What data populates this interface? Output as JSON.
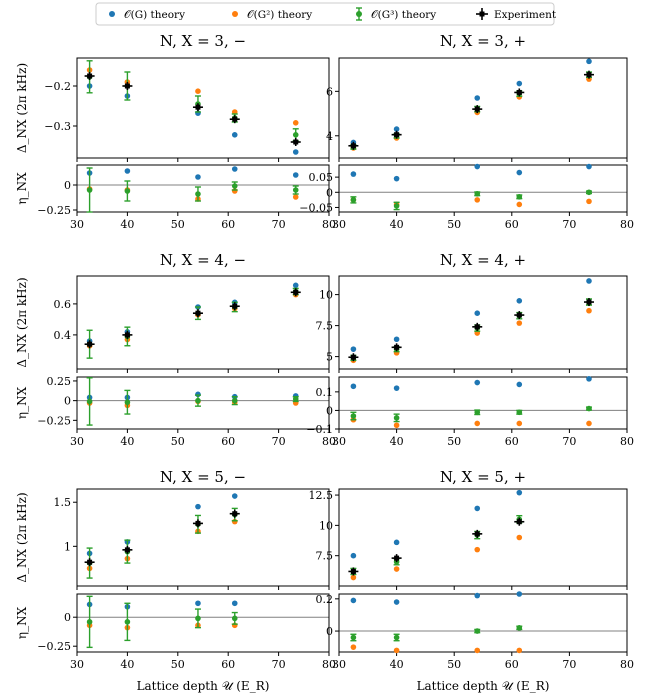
{
  "legend": {
    "items": [
      {
        "label": "𝒪(G) theory",
        "color": "#1f77b4",
        "marker": "dot"
      },
      {
        "label": "𝒪(G²) theory",
        "color": "#ff7f0e",
        "marker": "dot"
      },
      {
        "label": "𝒪(G³) theory",
        "color": "#2ca02c",
        "marker": "errorbar"
      },
      {
        "label": "Experiment",
        "color": "#000000",
        "marker": "cross-errorbar"
      }
    ]
  },
  "colors": {
    "og1": "#1f77b4",
    "og2": "#ff7f0e",
    "og3": "#2ca02c",
    "exp": "#000000",
    "zero_line": "#808080"
  },
  "xlabel": "Lattice depth 𝒰 (E_R)",
  "ylabel_top": "Δ_NX (2π kHz)",
  "ylabel_bottom": "η_NX",
  "chart_data": [
    {
      "type": "scatter",
      "title": "N, X = 3, −",
      "xlim": [
        30,
        80
      ],
      "xticks": [
        30,
        40,
        50,
        60,
        70,
        80
      ],
      "top": {
        "ylim": [
          -0.38,
          -0.13
        ],
        "yticks": [
          -0.2,
          -0.3
        ],
        "series": [
          {
            "name": "𝒪(G) theory",
            "x": [
              32.5,
              40,
              54,
              61.3,
              73.4
            ],
            "y": [
              -0.2,
              -0.225,
              -0.268,
              -0.322,
              -0.365
            ]
          },
          {
            "name": "𝒪(G²) theory",
            "x": [
              32.5,
              40,
              54,
              61.3,
              73.4
            ],
            "y": [
              -0.16,
              -0.19,
              -0.213,
              -0.265,
              -0.292
            ]
          },
          {
            "name": "𝒪(G³) theory",
            "x": [
              32.5,
              40,
              54,
              61.3,
              73.4
            ],
            "y": [
              -0.177,
              -0.2,
              -0.245,
              -0.28,
              -0.322
            ],
            "err": [
              0.04,
              0.035,
              0.02,
              0.01,
              0.015
            ]
          },
          {
            "name": "Experiment",
            "x": [
              32.5,
              40,
              54,
              61.3,
              73.4
            ],
            "y": [
              -0.175,
              -0.2,
              -0.253,
              -0.283,
              -0.34
            ],
            "err": [
              0.006,
              0.006,
              0.006,
              0.006,
              0.006
            ]
          }
        ]
      },
      "bottom": {
        "ylim": [
          -0.27,
          0.2
        ],
        "yticks": [
          0.0,
          -0.25
        ],
        "series": [
          {
            "name": "𝒪(G) theory",
            "x": [
              32.5,
              40,
              54,
              61.3,
              73.4
            ],
            "y": [
              0.12,
              0.14,
              0.08,
              0.16,
              0.1
            ]
          },
          {
            "name": "𝒪(G²) theory",
            "x": [
              32.5,
              40,
              54,
              61.3,
              73.4
            ],
            "y": [
              -0.04,
              -0.05,
              -0.14,
              -0.06,
              -0.12
            ]
          },
          {
            "name": "𝒪(G³) theory",
            "x": [
              32.5,
              40,
              54,
              61.3,
              73.4
            ],
            "y": [
              -0.05,
              -0.06,
              -0.09,
              -0.01,
              -0.05
            ],
            "err": [
              0.22,
              0.1,
              0.07,
              0.04,
              0.04
            ]
          }
        ]
      }
    },
    {
      "type": "scatter",
      "title": "N, X = 3, +",
      "xlim": [
        30,
        80
      ],
      "xticks": [
        30,
        40,
        50,
        60,
        70,
        80
      ],
      "top": {
        "ylim": [
          3.0,
          7.5
        ],
        "yticks": [
          4,
          6
        ],
        "series": [
          {
            "name": "𝒪(G) theory",
            "x": [
              32.5,
              40,
              54,
              61.3,
              73.4
            ],
            "y": [
              3.7,
              4.3,
              5.7,
              6.35,
              7.35
            ]
          },
          {
            "name": "𝒪(G²) theory",
            "x": [
              32.5,
              40,
              54,
              61.3,
              73.4
            ],
            "y": [
              3.45,
              3.9,
              5.05,
              5.75,
              6.55
            ]
          },
          {
            "name": "𝒪(G³) theory",
            "x": [
              32.5,
              40,
              54,
              61.3,
              73.4
            ],
            "y": [
              3.5,
              4.0,
              5.2,
              5.9,
              6.75
            ],
            "err": [
              0.1,
              0.1,
              0.12,
              0.12,
              0.12
            ]
          },
          {
            "name": "Experiment",
            "x": [
              32.5,
              40,
              54,
              61.3,
              73.4
            ],
            "y": [
              3.55,
              4.05,
              5.2,
              5.95,
              6.75
            ],
            "err": [
              0.05,
              0.05,
              0.05,
              0.05,
              0.05
            ]
          }
        ]
      },
      "bottom": {
        "ylim": [
          -0.065,
          0.09
        ],
        "yticks": [
          0.05,
          0.0,
          -0.05
        ],
        "series": [
          {
            "name": "𝒪(G) theory",
            "x": [
              32.5,
              40,
              54,
              61.3,
              73.4
            ],
            "y": [
              0.06,
              0.045,
              0.085,
              0.065,
              0.085
            ]
          },
          {
            "name": "𝒪(G²) theory",
            "x": [
              32.5,
              40,
              54,
              61.3,
              73.4
            ],
            "y": [
              -0.025,
              -0.04,
              -0.025,
              -0.04,
              -0.03
            ]
          },
          {
            "name": "𝒪(G³) theory",
            "x": [
              32.5,
              40,
              54,
              61.3,
              73.4
            ],
            "y": [
              -0.025,
              -0.045,
              -0.005,
              -0.015,
              0.0
            ],
            "err": [
              0.01,
              0.012,
              0.006,
              0.006,
              0.004
            ]
          }
        ]
      }
    },
    {
      "type": "scatter",
      "title": "N, X = 4, −",
      "xlim": [
        30,
        80
      ],
      "xticks": [
        30,
        40,
        50,
        60,
        70,
        80
      ],
      "top": {
        "ylim": [
          0.18,
          0.78
        ],
        "yticks": [
          0.4,
          0.6
        ],
        "series": [
          {
            "name": "𝒪(G) theory",
            "x": [
              32.5,
              40,
              54,
              61.3,
              73.4
            ],
            "y": [
              0.36,
              0.42,
              0.58,
              0.61,
              0.72
            ]
          },
          {
            "name": "𝒪(G²) theory",
            "x": [
              32.5,
              40,
              54,
              61.3,
              73.4
            ],
            "y": [
              0.33,
              0.37,
              0.53,
              0.57,
              0.66
            ]
          },
          {
            "name": "𝒪(G³) theory",
            "x": [
              32.5,
              40,
              54,
              61.3,
              73.4
            ],
            "y": [
              0.34,
              0.39,
              0.54,
              0.58,
              0.68
            ],
            "err": [
              0.09,
              0.06,
              0.04,
              0.03,
              0.02
            ]
          },
          {
            "name": "Experiment",
            "x": [
              32.5,
              40,
              54,
              61.3,
              73.4
            ],
            "y": [
              0.34,
              0.4,
              0.54,
              0.585,
              0.675
            ],
            "err": [
              0.01,
              0.01,
              0.01,
              0.01,
              0.01
            ]
          }
        ]
      },
      "bottom": {
        "ylim": [
          -0.36,
          0.3
        ],
        "yticks": [
          0.25,
          0.0,
          -0.25
        ],
        "series": [
          {
            "name": "𝒪(G) theory",
            "x": [
              32.5,
              40,
              54,
              61.3,
              73.4
            ],
            "y": [
              0.04,
              0.04,
              0.08,
              0.05,
              0.06
            ]
          },
          {
            "name": "𝒪(G²) theory",
            "x": [
              32.5,
              40,
              54,
              61.3,
              73.4
            ],
            "y": [
              -0.03,
              -0.06,
              -0.01,
              -0.02,
              -0.03
            ]
          },
          {
            "name": "𝒪(G³) theory",
            "x": [
              32.5,
              40,
              54,
              61.3,
              73.4
            ],
            "y": [
              -0.01,
              -0.02,
              0.0,
              0.0,
              0.02
            ],
            "err": [
              0.3,
              0.15,
              0.07,
              0.05,
              0.03
            ]
          }
        ]
      }
    },
    {
      "type": "scatter",
      "title": "N, X = 4, +",
      "xlim": [
        30,
        80
      ],
      "xticks": [
        30,
        40,
        50,
        60,
        70,
        80
      ],
      "top": {
        "ylim": [
          4.0,
          11.5
        ],
        "yticks": [
          5.0,
          7.5,
          10.0
        ],
        "series": [
          {
            "name": "𝒪(G) theory",
            "x": [
              32.5,
              40,
              54,
              61.3,
              73.4
            ],
            "y": [
              5.6,
              6.4,
              8.5,
              9.5,
              11.1
            ]
          },
          {
            "name": "𝒪(G²) theory",
            "x": [
              32.5,
              40,
              54,
              61.3,
              73.4
            ],
            "y": [
              4.7,
              5.3,
              6.9,
              7.7,
              8.7
            ]
          },
          {
            "name": "𝒪(G³) theory",
            "x": [
              32.5,
              40,
              54,
              61.3,
              73.4
            ],
            "y": [
              4.9,
              5.6,
              7.3,
              8.3,
              9.4
            ],
            "err": [
              0.2,
              0.2,
              0.25,
              0.25,
              0.25
            ]
          },
          {
            "name": "Experiment",
            "x": [
              32.5,
              40,
              54,
              61.3,
              73.4
            ],
            "y": [
              4.95,
              5.75,
              7.4,
              8.35,
              9.4
            ],
            "err": [
              0.12,
              0.12,
              0.12,
              0.12,
              0.12
            ]
          }
        ]
      },
      "bottom": {
        "ylim": [
          -0.1,
          0.18
        ],
        "yticks": [
          0.1,
          0.0,
          -0.1
        ],
        "series": [
          {
            "name": "𝒪(G) theory",
            "x": [
              32.5,
              40,
              54,
              61.3,
              73.4
            ],
            "y": [
              0.13,
              0.12,
              0.15,
              0.14,
              0.17
            ]
          },
          {
            "name": "𝒪(G²) theory",
            "x": [
              32.5,
              40,
              54,
              61.3,
              73.4
            ],
            "y": [
              -0.05,
              -0.08,
              -0.07,
              -0.07,
              -0.07
            ]
          },
          {
            "name": "𝒪(G³) theory",
            "x": [
              32.5,
              40,
              54,
              61.3,
              73.4
            ],
            "y": [
              -0.03,
              -0.04,
              -0.01,
              -0.01,
              0.01
            ],
            "err": [
              0.02,
              0.02,
              0.012,
              0.01,
              0.008
            ]
          }
        ]
      }
    },
    {
      "type": "scatter",
      "title": "N, X = 5, −",
      "xlim": [
        30,
        80
      ],
      "xticks": [
        30,
        40,
        50,
        60,
        70,
        80
      ],
      "top": {
        "ylim": [
          0.55,
          1.65
        ],
        "yticks": [
          1.0,
          1.5
        ],
        "series": [
          {
            "name": "𝒪(G) theory",
            "x": [
              32.5,
              40,
              54,
              61.3
            ],
            "y": [
              0.92,
              1.05,
              1.45,
              1.57
            ]
          },
          {
            "name": "𝒪(G²) theory",
            "x": [
              32.5,
              40,
              54,
              61.3
            ],
            "y": [
              0.75,
              0.86,
              1.17,
              1.28
            ]
          },
          {
            "name": "𝒪(G³) theory",
            "x": [
              32.5,
              40,
              54,
              61.3
            ],
            "y": [
              0.81,
              0.94,
              1.25,
              1.36
            ],
            "err": [
              0.17,
              0.13,
              0.1,
              0.07
            ]
          },
          {
            "name": "Experiment",
            "x": [
              32.5,
              40,
              54,
              61.3
            ],
            "y": [
              0.82,
              0.96,
              1.26,
              1.37
            ],
            "err": [
              0.02,
              0.02,
              0.02,
              0.02
            ]
          }
        ]
      },
      "bottom": {
        "ylim": [
          -0.3,
          0.2
        ],
        "yticks": [
          0.0,
          -0.25
        ],
        "series": [
          {
            "name": "𝒪(G) theory",
            "x": [
              32.5,
              40,
              54,
              61.3
            ],
            "y": [
              0.11,
              0.09,
              0.12,
              0.12
            ]
          },
          {
            "name": "𝒪(G²) theory",
            "x": [
              32.5,
              40,
              54,
              61.3
            ],
            "y": [
              -0.07,
              -0.09,
              -0.07,
              -0.07
            ]
          },
          {
            "name": "𝒪(G³) theory",
            "x": [
              32.5,
              40,
              54,
              61.3
            ],
            "y": [
              -0.04,
              -0.04,
              -0.01,
              -0.01
            ],
            "err": [
              0.22,
              0.16,
              0.08,
              0.05
            ]
          }
        ]
      }
    },
    {
      "type": "scatter",
      "title": "N, X = 5, +",
      "xlim": [
        30,
        80
      ],
      "xticks": [
        30,
        40,
        50,
        60,
        70,
        80
      ],
      "top": {
        "ylim": [
          5.0,
          13.0
        ],
        "yticks": [
          7.5,
          10.0,
          12.5
        ],
        "series": [
          {
            "name": "𝒪(G) theory",
            "x": [
              32.5,
              40,
              54,
              61.3
            ],
            "y": [
              7.5,
              8.6,
              11.4,
              12.7
            ]
          },
          {
            "name": "𝒪(G²) theory",
            "x": [
              32.5,
              40,
              54,
              61.3
            ],
            "y": [
              5.7,
              6.4,
              8.0,
              9.0
            ]
          },
          {
            "name": "𝒪(G³) theory",
            "x": [
              32.5,
              40,
              54,
              61.3
            ],
            "y": [
              6.2,
              7.0,
              9.2,
              10.5
            ],
            "err": [
              0.25,
              0.25,
              0.3,
              0.3
            ]
          },
          {
            "name": "Experiment",
            "x": [
              32.5,
              40,
              54,
              61.3
            ],
            "y": [
              6.2,
              7.3,
              9.3,
              10.3
            ],
            "err": [
              0.15,
              0.15,
              0.15,
              0.15
            ]
          }
        ]
      },
      "bottom": {
        "ylim": [
          -0.13,
          0.23
        ],
        "yticks": [
          0.2,
          0.0
        ],
        "series": [
          {
            "name": "𝒪(G) theory",
            "x": [
              32.5,
              40,
              54,
              61.3
            ],
            "y": [
              0.19,
              0.18,
              0.22,
              0.23
            ]
          },
          {
            "name": "𝒪(G²) theory",
            "x": [
              32.5,
              40,
              54,
              61.3
            ],
            "y": [
              -0.1,
              -0.12,
              -0.12,
              -0.12
            ]
          },
          {
            "name": "𝒪(G³) theory",
            "x": [
              32.5,
              40,
              54,
              61.3
            ],
            "y": [
              -0.04,
              -0.04,
              0.0,
              0.02
            ],
            "err": [
              0.02,
              0.02,
              0.01,
              0.01
            ]
          }
        ]
      }
    }
  ]
}
